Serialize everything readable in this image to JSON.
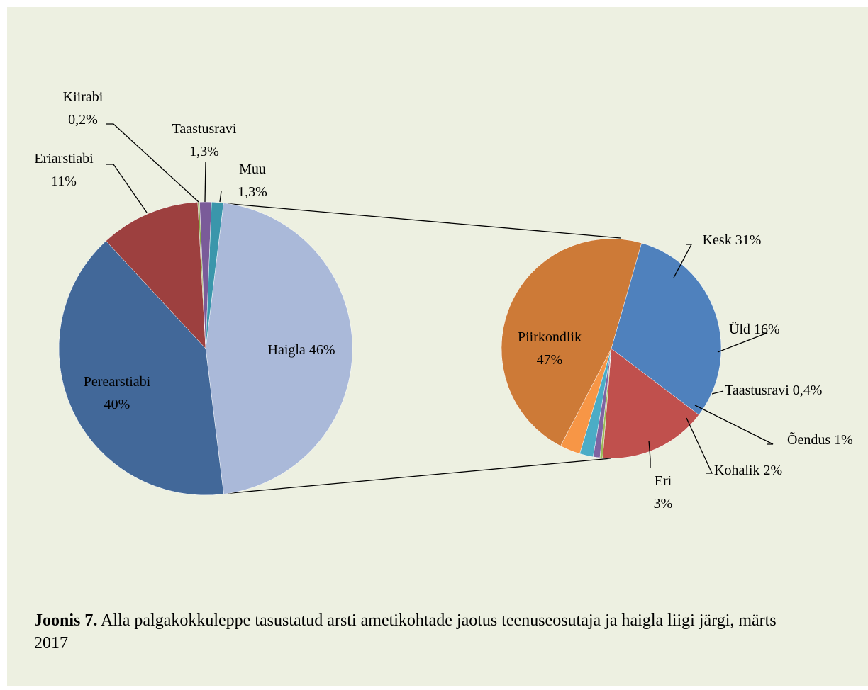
{
  "chart_data": [
    {
      "type": "pie",
      "categories": [
        "Haigla",
        "Perearstiabi",
        "Eriarstiabi",
        "Kiirabi",
        "Taastusravi",
        "Muu"
      ],
      "values": [
        46,
        40,
        11,
        0.2,
        1.3,
        1.3
      ],
      "value_labels": [
        "46%",
        "40%",
        "11%",
        "0,2%",
        "1,3%",
        "1,3%"
      ],
      "colors": [
        "#aab9d9",
        "#426899",
        "#9d403f",
        "#8aa64a",
        "#7a5b99",
        "#3a96ab"
      ]
    },
    {
      "type": "pie",
      "categories": [
        "Kesk",
        "Üld",
        "Taastusravi",
        "Õendus",
        "Kohalik",
        "Eri",
        "Piirkondlik"
      ],
      "values": [
        31,
        16,
        0.4,
        1,
        2,
        3,
        47
      ],
      "value_labels": [
        "31%",
        "16%",
        "0,4%",
        "1%",
        "2%",
        "3%",
        "47%"
      ],
      "colors": [
        "#4f81bd",
        "#c0504d",
        "#9bbb59",
        "#8064a2",
        "#4bacc6",
        "#f79646",
        "#cd7a37"
      ]
    }
  ],
  "caption": {
    "label": "Joonis 7.",
    "text": "Alla palgakokkuleppe tasustatud arsti ametikohtade jaotus teenuseosutaja ja haigla liigi järgi, märts 2017"
  }
}
